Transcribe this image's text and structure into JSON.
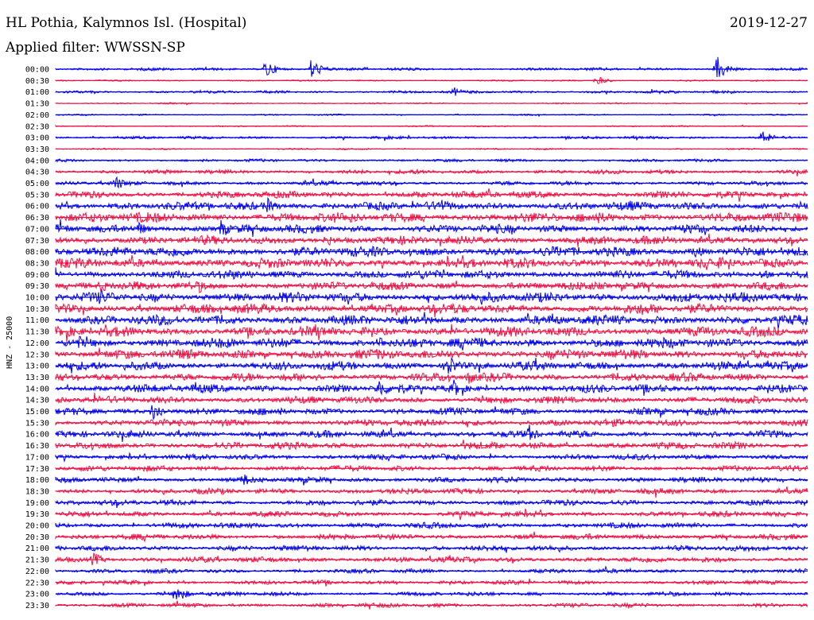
{
  "header": {
    "station": "HL Pothia, Kalymnos Isl. (Hospital)",
    "date": "2019-12-27",
    "filter_text": "Applied filter: WWSSN-SP"
  },
  "chart_data": {
    "type": "line",
    "title": "HL Pothia, Kalymnos Isl. (Hospital)",
    "ylabel": "HNZ - 25000",
    "channel": "HNZ",
    "scale": 25000,
    "row_labels": [
      "00:00",
      "00:30",
      "01:00",
      "01:30",
      "02:00",
      "02:30",
      "03:00",
      "03:30",
      "04:00",
      "04:30",
      "05:00",
      "05:30",
      "06:00",
      "06:30",
      "07:00",
      "07:30",
      "08:00",
      "08:30",
      "09:00",
      "09:30",
      "10:00",
      "10:30",
      "11:00",
      "11:30",
      "12:00",
      "12:30",
      "13:00",
      "13:30",
      "14:00",
      "14:30",
      "15:00",
      "15:30",
      "16:00",
      "16:30",
      "17:00",
      "17:30",
      "18:00",
      "18:30",
      "19:00",
      "19:30",
      "20:00",
      "20:30",
      "21:00",
      "21:30",
      "22:00",
      "22:30",
      "23:00",
      "23:30"
    ],
    "colors": [
      "#0000ee",
      "#ee1144"
    ],
    "noise_amplitude": [
      2,
      1,
      2,
      1,
      1,
      1,
      2,
      1,
      2,
      3,
      3,
      5,
      6,
      7,
      6,
      6,
      7,
      7,
      6,
      6,
      7,
      7,
      7,
      7,
      7,
      7,
      6,
      6,
      6,
      5,
      5,
      5,
      5,
      5,
      4,
      4,
      4,
      4,
      4,
      4,
      4,
      4,
      4,
      4,
      3,
      3,
      3,
      3
    ],
    "events": [
      {
        "row": 0,
        "x_frac": 0.28,
        "amp": 12
      },
      {
        "row": 0,
        "x_frac": 0.34,
        "amp": 14
      },
      {
        "row": 0,
        "x_frac": 0.88,
        "amp": 16
      },
      {
        "row": 1,
        "x_frac": 0.72,
        "amp": 6
      },
      {
        "row": 2,
        "x_frac": 0.53,
        "amp": 6
      },
      {
        "row": 6,
        "x_frac": 0.94,
        "amp": 10
      },
      {
        "row": 10,
        "x_frac": 0.08,
        "amp": 10
      },
      {
        "row": 12,
        "x_frac": 0.28,
        "amp": 12
      },
      {
        "row": 12,
        "x_frac": 0.51,
        "amp": 12
      },
      {
        "row": 14,
        "x_frac": 0.11,
        "amp": 10
      },
      {
        "row": 14,
        "x_frac": 0.22,
        "amp": 12
      },
      {
        "row": 15,
        "x_frac": 0.36,
        "amp": 9
      },
      {
        "row": 16,
        "x_frac": 0.85,
        "amp": 10
      },
      {
        "row": 18,
        "x_frac": 0.94,
        "amp": 9
      },
      {
        "row": 19,
        "x_frac": 0.06,
        "amp": 9
      },
      {
        "row": 19,
        "x_frac": 0.19,
        "amp": 10
      },
      {
        "row": 20,
        "x_frac": 0.06,
        "amp": 12
      },
      {
        "row": 23,
        "x_frac": 0.94,
        "amp": 8
      },
      {
        "row": 24,
        "x_frac": 0.03,
        "amp": 10
      },
      {
        "row": 24,
        "x_frac": 0.43,
        "amp": 10
      },
      {
        "row": 26,
        "x_frac": 0.52,
        "amp": 18
      },
      {
        "row": 27,
        "x_frac": 0.55,
        "amp": 10
      },
      {
        "row": 28,
        "x_frac": 0.43,
        "amp": 14
      },
      {
        "row": 28,
        "x_frac": 0.53,
        "amp": 12
      },
      {
        "row": 30,
        "x_frac": 0.13,
        "amp": 14
      },
      {
        "row": 32,
        "x_frac": 0.63,
        "amp": 12
      },
      {
        "row": 36,
        "x_frac": 0.25,
        "amp": 9
      },
      {
        "row": 43,
        "x_frac": 0.05,
        "amp": 10
      },
      {
        "row": 46,
        "x_frac": 0.16,
        "amp": 13
      }
    ]
  }
}
